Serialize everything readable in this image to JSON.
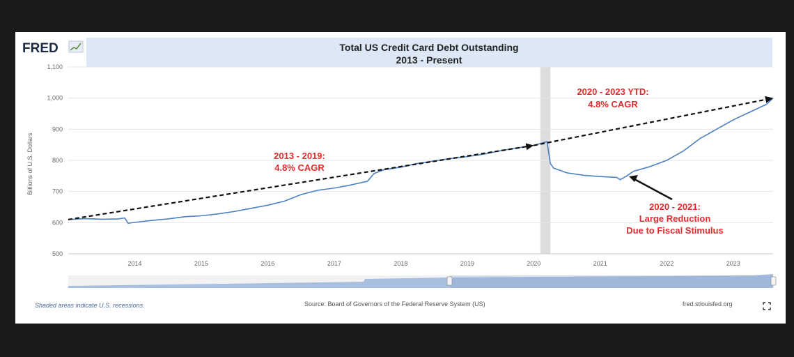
{
  "header": {
    "logo_text": "FRED",
    "title_line1": "Total US Credit Card Debt Outstanding",
    "title_line2": "2013 - Present"
  },
  "footer": {
    "recession_note": "Shaded areas indicate U.S. recessions.",
    "source": "Source: Board of Governors of the Federal Reserve System (US)",
    "site": "fred.stlouisfed.org"
  },
  "colors": {
    "line": "#4a7fc1",
    "header_band": "#dde8f7",
    "annotation": "#e32b2b",
    "recession": "#dddddd",
    "navigator": "#a9bfdf"
  },
  "icons": {
    "fullscreen": "fullscreen-icon",
    "logo": "fred-chart-logo-icon"
  },
  "chart_data": {
    "type": "line",
    "title": "Total US Credit Card Debt Outstanding",
    "subtitle": "2013 - Present",
    "xlabel": "",
    "ylabel": "Billions of U.S. Dollars",
    "xlim": [
      2013.0,
      2023.6
    ],
    "ylim": [
      500,
      1100
    ],
    "x_ticks": [
      2014,
      2015,
      2016,
      2017,
      2018,
      2019,
      2020,
      2021,
      2022,
      2023
    ],
    "x_tick_labels": [
      "2014",
      "2015",
      "2016",
      "2017",
      "2018",
      "2019",
      "2020",
      "2021",
      "2022",
      "2023"
    ],
    "y_ticks": [
      500,
      600,
      700,
      800,
      900,
      1000,
      1100
    ],
    "y_tick_labels": [
      "500",
      "600",
      "700",
      "800",
      "900",
      "1,000",
      "1,100"
    ],
    "grid": "horizontal",
    "recession_periods": [
      [
        2020.1,
        2020.25
      ]
    ],
    "series": [
      {
        "x": [
          2013.0,
          2013.25,
          2013.5,
          2013.75,
          2013.85,
          2013.9,
          2014.0,
          2014.25,
          2014.5,
          2014.75,
          2015.0,
          2015.25,
          2015.5,
          2015.75,
          2016.0,
          2016.25,
          2016.5,
          2016.75,
          2017.0,
          2017.25,
          2017.5,
          2017.6,
          2017.75,
          2018.0,
          2018.25,
          2018.5,
          2018.75,
          2019.0,
          2019.25,
          2019.5,
          2019.75,
          2020.0,
          2020.2,
          2020.25,
          2020.3,
          2020.5,
          2020.75,
          2021.0,
          2021.25,
          2021.3,
          2021.4,
          2021.5,
          2021.75,
          2022.0,
          2022.25,
          2022.5,
          2022.75,
          2023.0,
          2023.25,
          2023.5,
          2023.6
        ],
        "values": [
          610,
          613,
          611,
          612,
          615,
          598,
          601,
          607,
          612,
          619,
          622,
          628,
          636,
          646,
          656,
          669,
          690,
          704,
          711,
          721,
          733,
          758,
          770,
          778,
          790,
          798,
          806,
          812,
          820,
          831,
          840,
          848,
          860,
          790,
          775,
          760,
          752,
          748,
          745,
          738,
          750,
          765,
          780,
          800,
          830,
          870,
          900,
          930,
          955,
          980,
          1000
        ]
      },
      {
        "x": [
          2013.0,
          2020.0
        ],
        "values": [
          610,
          848
        ]
      },
      {
        "x": [
          2020.0,
          2023.6
        ],
        "values": [
          848,
          1000
        ]
      }
    ],
    "annotations": [
      {
        "line1": "2013 - 2019:",
        "line2": "4.8% CAGR"
      },
      {
        "line1": "2020 - 2023 YTD:",
        "line2": "4.8% CAGR"
      },
      {
        "line1": "2020 - 2021:",
        "line2": "Large Reduction",
        "line3": "Due to Fiscal Stimulus"
      }
    ]
  }
}
